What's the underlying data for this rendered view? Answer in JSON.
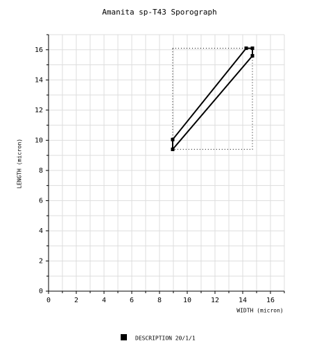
{
  "chart_data": {
    "type": "polygon",
    "title": "Amanita sp-T43 Sporograph",
    "x_label": "WIDTH (micron)",
    "y_label": "LENGTH (micron)",
    "xlim": [
      0,
      17
    ],
    "ylim": [
      0,
      17
    ],
    "xticks": [
      0,
      2,
      4,
      6,
      8,
      10,
      12,
      14,
      16
    ],
    "yticks": [
      0,
      2,
      4,
      6,
      8,
      10,
      12,
      14,
      16
    ],
    "xminorticks": [
      1,
      3,
      5,
      7,
      9,
      11,
      13,
      15,
      17
    ],
    "yminorticks": [
      1,
      3,
      5,
      7,
      9,
      11,
      13,
      15,
      17
    ],
    "grid": true,
    "series": [
      {
        "name": "DESCRIPTION 20/1/1",
        "color": "#000000",
        "x": [
          8.95,
          8.95,
          14.25,
          14.7,
          14.7,
          8.95
        ],
        "values": [
          9.4,
          10.05,
          16.1,
          16.1,
          15.6,
          9.4
        ]
      }
    ],
    "bounds": {
      "x": [
        8.95,
        14.7
      ],
      "y": [
        9.4,
        16.1
      ]
    }
  }
}
